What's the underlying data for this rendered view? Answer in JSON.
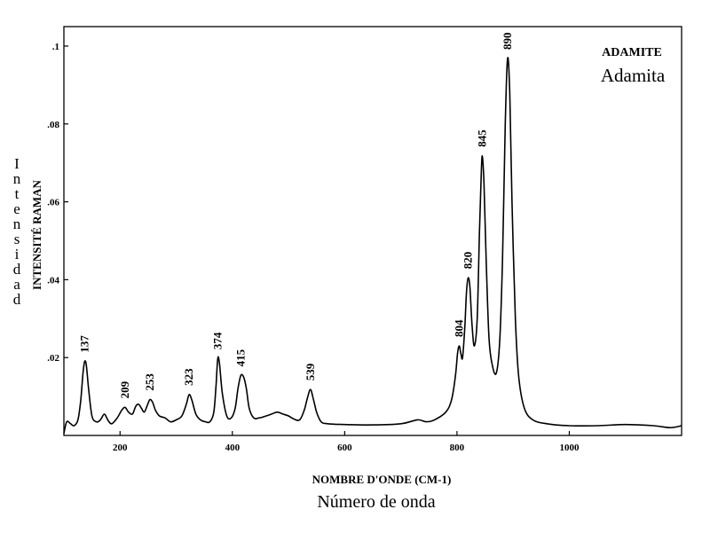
{
  "chart_data": {
    "type": "line",
    "title": "ADAMITE",
    "subtitle": "Adamita",
    "xlabel": "NOMBRE D'ONDE (CM-1)",
    "xlabel_secondary": "Número de onda",
    "ylabel": "INTENSITÉ RAMAN",
    "ylabel_secondary": "Intensidad",
    "xlim": [
      100,
      1200
    ],
    "ylim": [
      0,
      0.105
    ],
    "x_ticks": [
      200,
      400,
      600,
      800,
      1000
    ],
    "x_tick_labels": [
      "200",
      "400",
      "600",
      "800",
      "1000"
    ],
    "y_ticks": [
      0.02,
      0.04,
      0.06,
      0.08,
      0.1
    ],
    "y_tick_labels": [
      ".02",
      ".04",
      ".06",
      ".08",
      ".1"
    ],
    "grid": false,
    "peak_labels": [
      "137",
      "209",
      "253",
      "323",
      "374",
      "415",
      "539",
      "804",
      "820",
      "845",
      "890"
    ],
    "series": [
      {
        "x": [
          100,
          105,
          112,
          118,
          125,
          130,
          134,
          137,
          140,
          144,
          150,
          158,
          165,
          172,
          178,
          185,
          195,
          203,
          209,
          215,
          222,
          228,
          233,
          238,
          243,
          248,
          253,
          258,
          263,
          270,
          280,
          290,
          300,
          310,
          318,
          323,
          328,
          335,
          343,
          352,
          360,
          367,
          371,
          374,
          377,
          382,
          390,
          398,
          405,
          410,
          415,
          420,
          425,
          430,
          438,
          448,
          460,
          470,
          480,
          490,
          500,
          510,
          520,
          528,
          534,
          539,
          544,
          550,
          558,
          570,
          600,
          650,
          700,
          730,
          745,
          760,
          780,
          790,
          797,
          801,
          804,
          807,
          810,
          814,
          817,
          820,
          823,
          827,
          831,
          836,
          840,
          843,
          845,
          848,
          852,
          857,
          863,
          870,
          876,
          881,
          886,
          890,
          894,
          898,
          904,
          910,
          920,
          935,
          960,
          1000,
          1050,
          1100,
          1150,
          1180,
          1200
        ],
        "y": [
          0.0005,
          0.0035,
          0.003,
          0.0025,
          0.004,
          0.009,
          0.016,
          0.019,
          0.018,
          0.012,
          0.005,
          0.0035,
          0.004,
          0.0055,
          0.004,
          0.003,
          0.0045,
          0.0065,
          0.0072,
          0.006,
          0.0055,
          0.0075,
          0.008,
          0.007,
          0.006,
          0.0075,
          0.0092,
          0.0085,
          0.0065,
          0.005,
          0.0045,
          0.0035,
          0.004,
          0.005,
          0.008,
          0.0105,
          0.009,
          0.0055,
          0.004,
          0.0035,
          0.0035,
          0.006,
          0.013,
          0.0198,
          0.0185,
          0.011,
          0.005,
          0.0045,
          0.007,
          0.012,
          0.0154,
          0.015,
          0.012,
          0.007,
          0.0045,
          0.0045,
          0.005,
          0.0055,
          0.006,
          0.0055,
          0.005,
          0.0042,
          0.004,
          0.0065,
          0.0098,
          0.0118,
          0.0095,
          0.006,
          0.0035,
          0.003,
          0.0028,
          0.0027,
          0.003,
          0.004,
          0.0035,
          0.004,
          0.006,
          0.009,
          0.015,
          0.021,
          0.023,
          0.021,
          0.02,
          0.028,
          0.037,
          0.0405,
          0.038,
          0.028,
          0.023,
          0.03,
          0.052,
          0.066,
          0.0718,
          0.065,
          0.045,
          0.025,
          0.018,
          0.016,
          0.024,
          0.045,
          0.08,
          0.0968,
          0.088,
          0.06,
          0.03,
          0.015,
          0.007,
          0.004,
          0.003,
          0.0025,
          0.0025,
          0.0028,
          0.0025,
          0.002,
          0.0025
        ]
      }
    ]
  }
}
